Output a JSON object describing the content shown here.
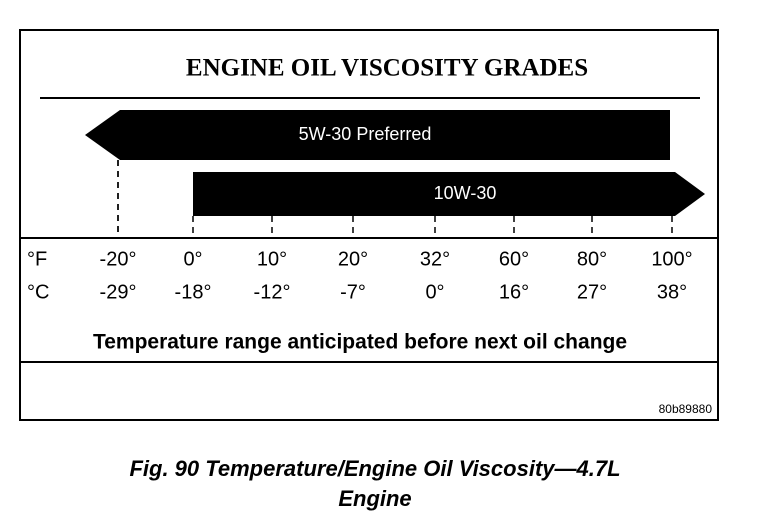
{
  "figure": {
    "title": "ENGINE OIL VISCOSITY GRADES",
    "arrows": [
      {
        "label": "5W-30 Preferred"
      },
      {
        "label": "10W-30"
      }
    ],
    "scales": [
      {
        "unit": "°F",
        "ticks": [
          "-20°",
          "0°",
          "10°",
          "20°",
          "32°",
          "60°",
          "80°",
          "100°"
        ]
      },
      {
        "unit": "°C",
        "ticks": [
          "-29°",
          "-18°",
          "-12°",
          "-7°",
          "0°",
          "16°",
          "27°",
          "38°"
        ]
      }
    ],
    "range_caption": "Temperature range anticipated before next oil change",
    "figure_id": "80b89880",
    "caption_lines": [
      "Fig. 90 Temperature/Engine Oil Viscosity—4.7L",
      "Engine"
    ]
  }
}
